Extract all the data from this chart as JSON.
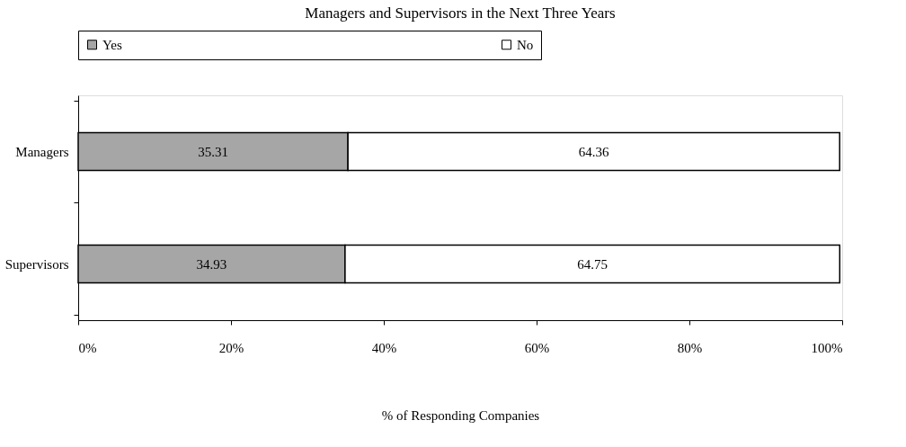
{
  "chart_data": {
    "type": "bar",
    "orientation": "horizontal",
    "stacked": true,
    "title": "Managers and Supervisors in the Next Three Years",
    "xlabel": "% of Responding Companies",
    "categories": [
      "Managers",
      "Supervisors"
    ],
    "series": [
      {
        "name": "Yes",
        "color": "#a6a6a6",
        "values": [
          35.31,
          34.93
        ]
      },
      {
        "name": "No",
        "color": "#ffffff",
        "values": [
          64.36,
          64.75
        ]
      }
    ],
    "xlim": [
      0,
      100
    ],
    "xticks": [
      {
        "value": 0,
        "label": "0%"
      },
      {
        "value": 20,
        "label": "20%"
      },
      {
        "value": 40,
        "label": "40%"
      },
      {
        "value": 60,
        "label": "60%"
      },
      {
        "value": 80,
        "label": "80%"
      },
      {
        "value": 100,
        "label": "100%"
      }
    ],
    "data_labels": true,
    "legend": "top",
    "grid": false
  }
}
